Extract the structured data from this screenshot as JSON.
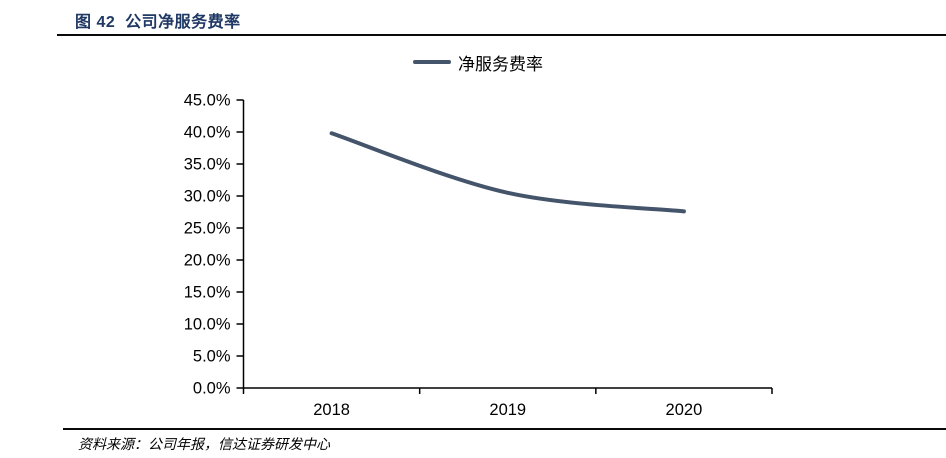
{
  "figure": {
    "title": "图 42  公司净服务费率",
    "source": "资料来源：公司年报，信达证券研发中心"
  },
  "chart_data": {
    "type": "line",
    "title": "图 42 公司净服务费率",
    "categories": [
      "2018",
      "2019",
      "2020"
    ],
    "series": [
      {
        "name": "净服务费率",
        "values": [
          39.8,
          30.5,
          27.6
        ]
      }
    ],
    "xlabel": "",
    "ylabel": "",
    "ylim": [
      0,
      45
    ],
    "ytick_step": 5,
    "ytick_labels": [
      "0.0%",
      "5.0%",
      "10.0%",
      "15.0%",
      "20.0%",
      "25.0%",
      "30.0%",
      "35.0%",
      "40.0%",
      "45.0%"
    ],
    "grid": false,
    "smooth": true,
    "legend_position": "top-center",
    "line_color": "#44546A",
    "axis_color": "#000000",
    "tick_label_color": "#000000"
  },
  "colors": {
    "title_text": "#1F3864",
    "rule": "#0a0a0a",
    "label_text": "#000000"
  }
}
